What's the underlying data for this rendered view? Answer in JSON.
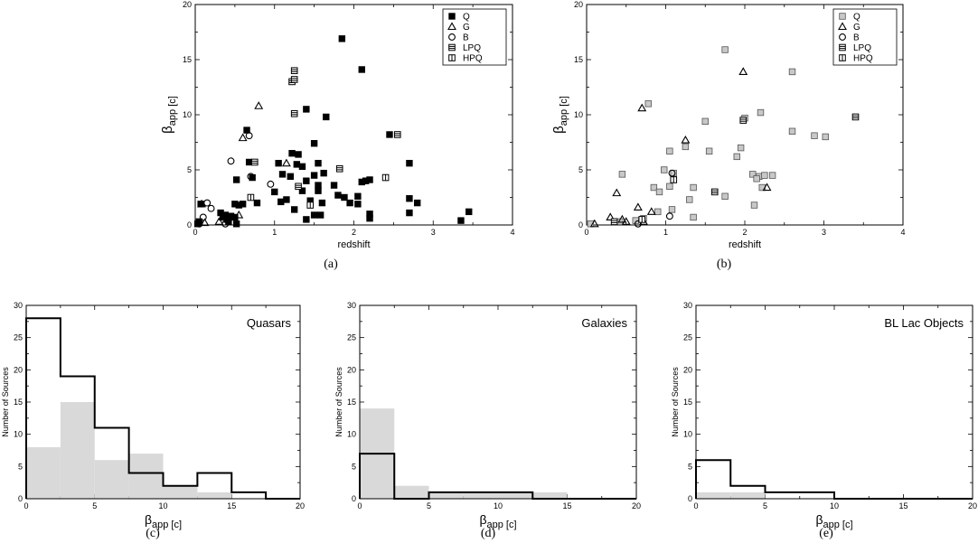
{
  "figure": {
    "panel_labels": [
      "(a)",
      "(b)",
      "(c)",
      "(d)",
      "(e)"
    ]
  },
  "chart_data": [
    {
      "type": "scatter",
      "panel": "(a)",
      "xlabel": "redshift",
      "ylabel_main": "β",
      "ylabel_sub": "app [c]",
      "xlim": [
        0,
        4
      ],
      "ylim": [
        0,
        20
      ],
      "xticks": [
        0,
        1,
        2,
        3,
        4
      ],
      "yticks": [
        0,
        5,
        10,
        15,
        20
      ],
      "grid": false,
      "legend_position": "top-right",
      "series": [
        {
          "name": "Q",
          "marker": "square",
          "fill": "#000000",
          "points": [
            [
              1.85,
              16.9
            ],
            [
              2.1,
              14.1
            ],
            [
              1.4,
              10.5
            ],
            [
              1.65,
              9.8
            ],
            [
              2.45,
              8.2
            ],
            [
              1.3,
              6.4
            ],
            [
              1.22,
              6.5
            ],
            [
              1.5,
              7.4
            ],
            [
              1.05,
              5.6
            ],
            [
              1.28,
              5.5
            ],
            [
              1.35,
              5.3
            ],
            [
              1.55,
              5.6
            ],
            [
              1.62,
              4.7
            ],
            [
              1.5,
              4.5
            ],
            [
              1.2,
              4.4
            ],
            [
              1.4,
              4.0
            ],
            [
              1.55,
              3.6
            ],
            [
              1.75,
              3.6
            ],
            [
              2.7,
              5.6
            ],
            [
              1.1,
              4.6
            ],
            [
              0.72,
              4.3
            ],
            [
              0.52,
              4.1
            ],
            [
              0.68,
              5.7
            ],
            [
              0.65,
              8.6
            ],
            [
              1.0,
              3.0
            ],
            [
              1.35,
              3.1
            ],
            [
              1.55,
              3.1
            ],
            [
              1.15,
              2.3
            ],
            [
              1.45,
              2.2
            ],
            [
              1.8,
              2.7
            ],
            [
              1.88,
              2.5
            ],
            [
              2.05,
              2.6
            ],
            [
              2.15,
              4.0
            ],
            [
              2.1,
              3.9
            ],
            [
              2.2,
              4.1
            ],
            [
              1.08,
              2.1
            ],
            [
              0.78,
              2.0
            ],
            [
              0.6,
              1.9
            ],
            [
              0.55,
              1.8
            ],
            [
              0.5,
              1.9
            ],
            [
              0.45,
              0.8
            ],
            [
              0.4,
              0.5
            ],
            [
              0.35,
              0.7
            ],
            [
              0.32,
              1.1
            ],
            [
              0.38,
              0.9
            ],
            [
              0.5,
              0.7
            ],
            [
              0.42,
              0.3
            ],
            [
              0.52,
              0.1
            ],
            [
              0.07,
              1.9
            ],
            [
              0.05,
              0.3
            ],
            [
              0.03,
              0.1
            ],
            [
              1.25,
              1.4
            ],
            [
              1.4,
              0.5
            ],
            [
              1.5,
              0.9
            ],
            [
              1.58,
              0.9
            ],
            [
              1.6,
              2.0
            ],
            [
              1.95,
              2.0
            ],
            [
              2.05,
              1.9
            ],
            [
              2.2,
              0.6
            ],
            [
              2.2,
              1.0
            ],
            [
              2.7,
              2.4
            ],
            [
              2.8,
              2.0
            ],
            [
              2.7,
              1.1
            ],
            [
              3.35,
              0.4
            ],
            [
              3.45,
              1.2
            ]
          ]
        },
        {
          "name": "G",
          "marker": "triangle",
          "fill": "none",
          "points": [
            [
              0.8,
              10.8
            ],
            [
              0.6,
              7.9
            ],
            [
              1.15,
              5.6
            ],
            [
              0.3,
              0.3
            ],
            [
              0.35,
              0.7
            ],
            [
              0.08,
              1.9
            ],
            [
              0.55,
              0.9
            ],
            [
              0.12,
              0.2
            ]
          ]
        },
        {
          "name": "B",
          "marker": "circle",
          "fill": "none",
          "points": [
            [
              0.45,
              5.8
            ],
            [
              0.7,
              4.4
            ],
            [
              0.95,
              3.7
            ],
            [
              0.68,
              8.1
            ],
            [
              0.2,
              1.5
            ],
            [
              0.15,
              2.0
            ],
            [
              0.1,
              0.7
            ],
            [
              0.38,
              0.1
            ],
            [
              0.05,
              0.1
            ]
          ]
        },
        {
          "name": "LPQ",
          "marker": "hsquare",
          "fill": "none",
          "points": [
            [
              1.25,
              14.0
            ],
            [
              1.22,
              13.0
            ],
            [
              1.25,
              13.2
            ],
            [
              1.25,
              10.1
            ],
            [
              2.55,
              8.2
            ],
            [
              0.75,
              5.7
            ],
            [
              1.82,
              5.1
            ],
            [
              1.3,
              3.5
            ]
          ]
        },
        {
          "name": "HPQ",
          "marker": "vsquare",
          "fill": "none",
          "points": [
            [
              2.4,
              4.3
            ],
            [
              0.7,
              2.5
            ],
            [
              1.45,
              1.8
            ]
          ]
        }
      ]
    },
    {
      "type": "scatter",
      "panel": "(b)",
      "xlabel": "redshift",
      "ylabel_main": "β",
      "ylabel_sub": "app [c]",
      "xlim": [
        0,
        4
      ],
      "ylim": [
        0,
        20
      ],
      "xticks": [
        0,
        1,
        2,
        3,
        4
      ],
      "yticks": [
        0,
        5,
        10,
        15,
        20
      ],
      "grid": false,
      "legend_position": "top-right",
      "series": [
        {
          "name": "Q",
          "marker": "square",
          "fill": "#c8c8c8",
          "points": [
            [
              1.75,
              15.9
            ],
            [
              2.6,
              13.9
            ],
            [
              0.78,
              11.0
            ],
            [
              2.2,
              10.2
            ],
            [
              2.0,
              9.7
            ],
            [
              1.5,
              9.4
            ],
            [
              2.6,
              8.5
            ],
            [
              2.88,
              8.1
            ],
            [
              3.02,
              8.0
            ],
            [
              1.9,
              6.2
            ],
            [
              1.95,
              7.0
            ],
            [
              1.25,
              7.1
            ],
            [
              1.05,
              6.7
            ],
            [
              1.55,
              6.7
            ],
            [
              2.1,
              4.6
            ],
            [
              2.18,
              4.4
            ],
            [
              2.25,
              4.5
            ],
            [
              2.35,
              4.5
            ],
            [
              2.15,
              4.2
            ],
            [
              0.45,
              4.6
            ],
            [
              0.98,
              5.0
            ],
            [
              1.1,
              4.7
            ],
            [
              1.35,
              3.4
            ],
            [
              1.05,
              3.5
            ],
            [
              0.85,
              3.4
            ],
            [
              0.92,
              3.0
            ],
            [
              1.3,
              2.3
            ],
            [
              1.75,
              2.6
            ],
            [
              2.22,
              3.4
            ],
            [
              2.12,
              1.8
            ],
            [
              0.9,
              1.2
            ],
            [
              1.08,
              1.4
            ],
            [
              1.35,
              0.7
            ],
            [
              0.72,
              0.6
            ],
            [
              0.62,
              0.4
            ],
            [
              0.42,
              0.3
            ],
            [
              0.05,
              0.1
            ]
          ]
        },
        {
          "name": "G",
          "marker": "triangle",
          "fill": "none",
          "points": [
            [
              1.98,
              13.9
            ],
            [
              0.7,
              10.6
            ],
            [
              1.25,
              7.7
            ],
            [
              0.38,
              2.9
            ],
            [
              0.3,
              0.7
            ],
            [
              0.45,
              0.5
            ],
            [
              0.5,
              0.3
            ],
            [
              0.65,
              1.6
            ],
            [
              0.82,
              1.2
            ],
            [
              0.72,
              0.3
            ],
            [
              2.28,
              3.4
            ],
            [
              0.1,
              0.1
            ]
          ]
        },
        {
          "name": "B",
          "marker": "circle",
          "fill": "none",
          "points": [
            [
              1.08,
              4.7
            ],
            [
              1.05,
              0.8
            ],
            [
              0.65,
              0.1
            ]
          ]
        },
        {
          "name": "LPQ",
          "marker": "hsquare",
          "fill": "none",
          "points": [
            [
              3.4,
              9.8
            ],
            [
              1.98,
              9.5
            ],
            [
              1.62,
              3.0
            ],
            [
              0.35,
              0.3
            ]
          ]
        },
        {
          "name": "HPQ",
          "marker": "vsquare",
          "fill": "none",
          "points": [
            [
              0.7,
              0.5
            ],
            [
              1.1,
              4.1
            ]
          ]
        }
      ]
    },
    {
      "type": "histogram",
      "panel": "(c)",
      "annotation": "Quasars",
      "xlabel_main": "β",
      "xlabel_sub": "app [c]",
      "ylabel": "Number of Sources",
      "xlim": [
        0,
        20
      ],
      "ylim": [
        0,
        30
      ],
      "xticks": [
        0,
        5,
        10,
        15,
        20
      ],
      "yticks": [
        0,
        5,
        10,
        15,
        20,
        25,
        30
      ],
      "bin_edges": [
        0,
        2.5,
        5,
        7.5,
        10,
        12.5,
        15,
        17.5,
        20
      ],
      "filled_counts": [
        8,
        15,
        6,
        7,
        2,
        1,
        0,
        0
      ],
      "outline_counts": [
        28,
        19,
        11,
        4,
        2,
        4,
        1,
        0
      ],
      "filled_color": "#d9d9d9",
      "outline_color": "#000000"
    },
    {
      "type": "histogram",
      "panel": "(d)",
      "annotation": "Galaxies",
      "xlabel_main": "β",
      "xlabel_sub": "app [c]",
      "ylabel": "Number of Sources",
      "xlim": [
        0,
        20
      ],
      "ylim": [
        0,
        30
      ],
      "xticks": [
        0,
        5,
        10,
        15,
        20
      ],
      "yticks": [
        0,
        5,
        10,
        15,
        20,
        25,
        30
      ],
      "bin_edges": [
        0,
        2.5,
        5,
        7.5,
        10,
        12.5,
        15,
        17.5,
        20
      ],
      "filled_counts": [
        14,
        2,
        1,
        1,
        1,
        1,
        0,
        0
      ],
      "outline_counts": [
        7,
        0,
        1,
        1,
        1,
        0,
        0,
        0
      ],
      "filled_color": "#d9d9d9",
      "outline_color": "#000000"
    },
    {
      "type": "histogram",
      "panel": "(e)",
      "annotation": "BL Lac Objects",
      "xlabel_main": "β",
      "xlabel_sub": "app [c]",
      "ylabel": "Number of Sources",
      "xlim": [
        0,
        20
      ],
      "ylim": [
        0,
        30
      ],
      "xticks": [
        0,
        5,
        10,
        15,
        20
      ],
      "yticks": [
        0,
        5,
        10,
        15,
        20,
        25,
        30
      ],
      "bin_edges": [
        0,
        2.5,
        5,
        7.5,
        10,
        12.5,
        15,
        17.5,
        20
      ],
      "filled_counts": [
        1,
        1,
        0,
        0,
        0,
        0,
        0,
        0
      ],
      "outline_counts": [
        6,
        2,
        1,
        1,
        0,
        0,
        0,
        0
      ],
      "filled_color": "#d9d9d9",
      "outline_color": "#000000"
    }
  ]
}
